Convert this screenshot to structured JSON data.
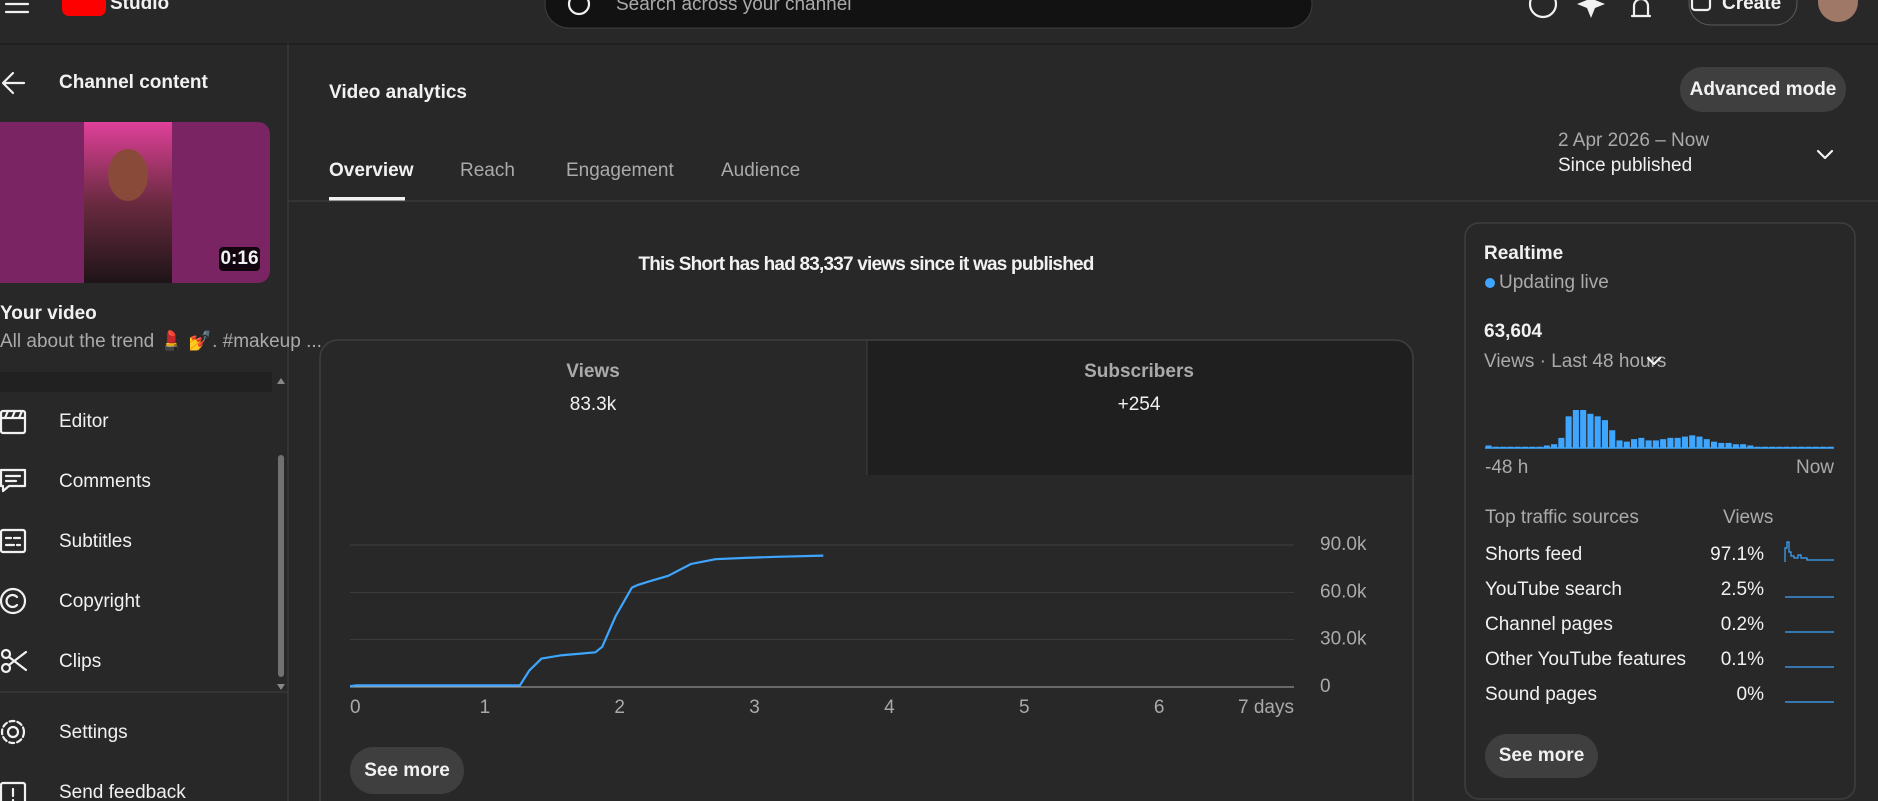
{
  "header": {
    "logo": "Studio",
    "search_placeholder": "Search across your channel",
    "create": "Create"
  },
  "sidebar": {
    "back": "Channel content",
    "duration": "0:16",
    "your_video": "Your video",
    "description": "All about the trend 💄 💅. #makeup ...",
    "items": [
      "Editor",
      "Comments",
      "Subtitles",
      "Copyright",
      "Clips"
    ],
    "footer": [
      "Settings",
      "Send feedback"
    ]
  },
  "main": {
    "title": "Video analytics",
    "advanced": "Advanced mode",
    "tabs": [
      "Overview",
      "Reach",
      "Engagement",
      "Audience"
    ],
    "date_range": "2 Apr 2026 – Now",
    "period": "Since published",
    "headline": "This Short has had 83,337 views since it was published",
    "cards": [
      {
        "label": "Views",
        "value": "83.3k"
      },
      {
        "label": "Subscribers",
        "value": "+254"
      }
    ],
    "see_more": "See more"
  },
  "chart_data": [
    {
      "type": "line",
      "color": "#3ea6ff",
      "grid": true,
      "x": [
        0,
        0.05,
        1.26,
        1.33,
        1.42,
        1.56,
        1.69,
        1.82,
        1.87,
        1.97,
        2.09,
        2.13,
        2.22,
        2.36,
        2.53,
        2.71,
        2.93,
        3.16,
        3.51
      ],
      "values": [
        500,
        1000,
        1000,
        10500,
        18000,
        20000,
        21000,
        22000,
        25500,
        45000,
        63000,
        64500,
        67000,
        70500,
        78000,
        81000,
        81800,
        82500,
        83300
      ],
      "xlim": [
        0,
        7
      ],
      "xticks": [
        0,
        1,
        2,
        3,
        4,
        5,
        6,
        {
          "value": 7,
          "label": "7 days"
        }
      ],
      "ylim": [
        0,
        90000
      ],
      "yticks": [
        0,
        {
          "value": 30000,
          "label": "30.0k"
        },
        {
          "value": 60000,
          "label": "60.0k"
        },
        {
          "value": 90000,
          "label": "90.0k"
        }
      ]
    },
    {
      "type": "bar",
      "color": "#3ea6ff",
      "categories": [
        "-48 h",
        null,
        null,
        null,
        null,
        null,
        null,
        null,
        null,
        null,
        null,
        null,
        null,
        null,
        null,
        null,
        null,
        null,
        null,
        null,
        null,
        null,
        null,
        null,
        null,
        null,
        null,
        null,
        null,
        null,
        null,
        null,
        null,
        null,
        null,
        null,
        null,
        null,
        null,
        null,
        null,
        null,
        null,
        null,
        null,
        null,
        null,
        "Now"
      ],
      "values": [
        400,
        200,
        200,
        200,
        200,
        200,
        200,
        200,
        400,
        600,
        1600,
        5000,
        6000,
        6000,
        5400,
        5000,
        4400,
        2800,
        1200,
        1000,
        1400,
        1600,
        1200,
        1200,
        1400,
        1600,
        1600,
        1800,
        2000,
        1800,
        1400,
        1000,
        800,
        800,
        600,
        600,
        400,
        200,
        200,
        200,
        200,
        200,
        200,
        200,
        200,
        200,
        200,
        200
      ]
    }
  ],
  "realtime": {
    "title": "Realtime",
    "status": "Updating live",
    "count": "63,604",
    "metric": "Views · Last 48 hours",
    "sources_header": "Top traffic sources",
    "views_header": "Views",
    "sources": [
      {
        "name": "Shorts feed",
        "share": "97.1%"
      },
      {
        "name": "YouTube search",
        "share": "2.5%"
      },
      {
        "name": "Channel pages",
        "share": "0.2%"
      },
      {
        "name": "Other YouTube features",
        "share": "0.1%"
      },
      {
        "name": "Sound pages",
        "share": "0%"
      }
    ],
    "see_more": "See more"
  }
}
